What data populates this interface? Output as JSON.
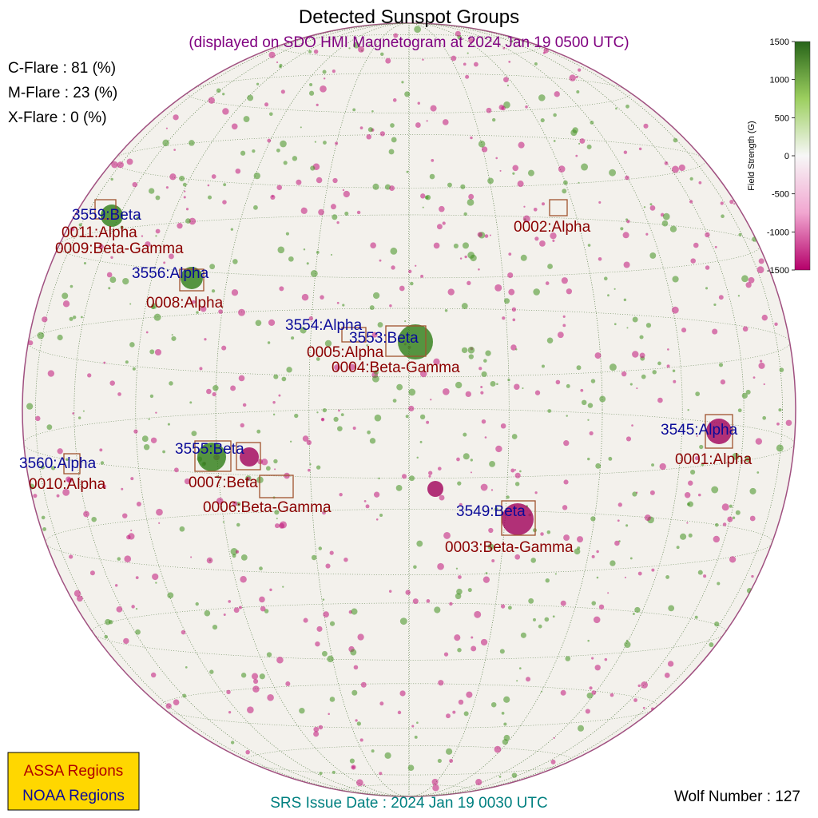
{
  "header": {
    "title": "Detected Sunspot Groups",
    "subtitle": "(displayed on SDO HMI Magnetogram at 2024 Jan 19 0500 UTC)"
  },
  "flares": [
    "C-Flare : 81 (%)",
    "M-Flare : 23 (%)",
    "X-Flare :  0 (%)"
  ],
  "noaa_regions": [
    "3559:Beta",
    "3556:Alpha",
    "3554:Alpha",
    "3553:Beta",
    "3545:Alpha",
    "3555:Beta",
    "3560:Alpha",
    "3549:Beta"
  ],
  "assa_regions": [
    "0011:Alpha",
    "0009:Beta-Gamma",
    "0002:Alpha",
    "0008:Alpha",
    "0005:Alpha",
    "0004:Beta-Gamma",
    "0001:Alpha",
    "0007:Beta",
    "0010:Alpha",
    "0006:Beta-Gamma",
    "0003:Beta-Gamma"
  ],
  "colorbar": {
    "label": "Field Strength (G)",
    "lim": [
      -1500,
      1500
    ],
    "ticks": [
      1500,
      1000,
      500,
      0,
      -500,
      -1000,
      -1500
    ]
  },
  "legend": [
    "ASSA Regions",
    "NOAA Regions"
  ],
  "footer": {
    "srs": "SRS Issue Date : 2024 Jan 19 0030 UTC",
    "wolf": "Wolf Number : 127"
  }
}
